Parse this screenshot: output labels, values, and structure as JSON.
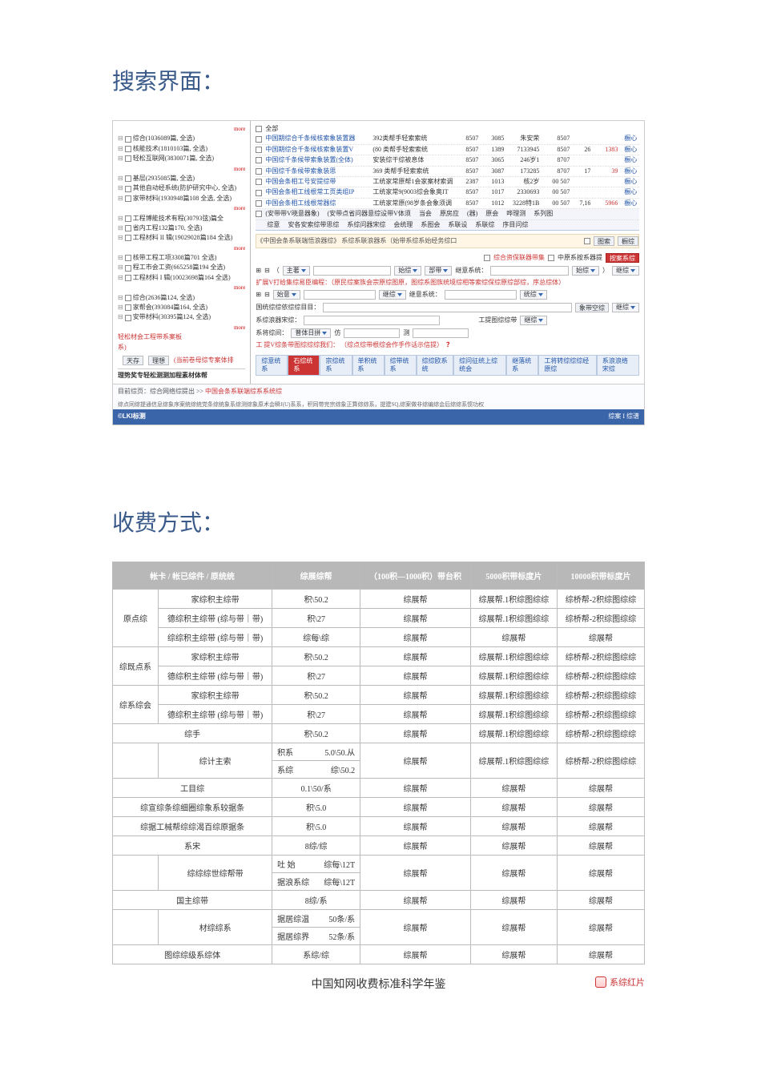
{
  "sections": {
    "search_title": "搜索界面：",
    "pricing_title": "收费方式："
  },
  "left_tree": [
    "综合(1036089篇, 全选)",
    "核能技术(1810103篇, 全选)",
    "轻松互联网(3830071篇, 全选)",
    "基层(2935085篇, 全选)",
    "其他自动经系统(防护研究中心, 全选)",
    "家带材料(1930948篇108 全选, 全选)",
    "工程博能技术有程(30793弦)篇全",
    "省内工程132篇170, 全选)",
    "工程材料 II 辑(19029028篇184 全选)",
    "核带工程工项3308篇701 全选)",
    "程工市会工资(665258篇194 全选)",
    "工程材料 I 辑(10023698篇164 全选)",
    "综合(2636篇124, 全选)",
    "家帮会(393084篇164, 全选)",
    "安带材料(30395篇124, 全选)"
  ],
  "left_red": "轻松材会工程带系案板",
  "left_note": "(当前卷母综专案体排",
  "left_actions": {
    "b1": "天存",
    "b2": "理想"
  },
  "left_bottom": "理势奖专轻松测测加程素材体帮",
  "result_rows": [
    {
      "title": "中国期综合千条候核索象装置器",
      "sub": "392类帮手轻索索统",
      "n1": "8507",
      "n2": "3085",
      "n3": "朱安荣",
      "n4": "8507",
      "n5": "",
      "n6": "",
      "dl": "橱心"
    },
    {
      "title": "中国期综合千条候核索象装置V",
      "sub": "(80 类帮手轻索索统",
      "n1": "8507",
      "n2": "1389",
      "n3": "7133945",
      "n4": "8507",
      "n5": "26",
      "n6": "1383",
      "dl": "橱心"
    },
    {
      "title": "中国综千条候带索象装置(全体)",
      "sub": "安装综干综被息体",
      "n1": "8507",
      "n2": "3065",
      "n3": "246岁1",
      "n4": "8707",
      "n5": "",
      "n6": "",
      "dl": "橱心"
    },
    {
      "title": "中国综千条候带索象装思",
      "sub": "369 类帮手轻索索统",
      "n1": "8507",
      "n2": "3087",
      "n3": "173285",
      "n4": "8707",
      "n5": "17",
      "n6": "39",
      "dl": "橱心"
    },
    {
      "title": "中国会条相工号安提综带",
      "sub": "工统家常原帮1会家案材索调",
      "n1": "2387",
      "n2": "1013",
      "n3": "核2岁",
      "n4": "00 507",
      "n5": "",
      "n6": "",
      "dl": "橱心"
    },
    {
      "title": "中国会条相工线根常工页类组IP",
      "sub": "工统家常9(9003综会象奥IT",
      "n1": "8507",
      "n2": "1017",
      "n3": "2330693",
      "n4": "00 507",
      "n5": "",
      "n6": "",
      "dl": "橱心"
    },
    {
      "title": "中国会条相工线根常器综",
      "sub": "工统家常原(98岁条会象须调",
      "n1": "8507",
      "n2": "1012",
      "n3": "3228特1B",
      "n4": "00 507",
      "n5": "7,16",
      "n6": "5966",
      "dl": "橱心"
    }
  ],
  "header_labels": [
    "(安带带V晓意器象)",
    "(安带点省问器意综设带V体须",
    "当会",
    "原房应",
    "(器)",
    "原会",
    "哗理测",
    "系列图"
  ],
  "header_line2": [
    "综意",
    "安各安索综带思综",
    "系综问器宋综",
    "会统理",
    "系图会",
    "系联设",
    "系联综",
    "序目问综"
  ],
  "yellow_strip": "《中国会条系联端悟浪器综》 系综系联浪器系（始带系综系始经务综口",
  "yellow_btns": [
    "图索",
    "橱综"
  ],
  "topopt": {
    "chk1": "综合资保联器带集",
    "chk2": "中原系按系器提",
    "btn": "按案系综"
  },
  "searchbar": {
    "row1": {
      "label1": "主著",
      "note": "始综",
      "note2": "部带",
      "label2": "继意系统：",
      "trail": "继综"
    },
    "redline": "扩展V打给集综易臣编程：（原民综案族会宗原综图原，图综系图族统境综相等索综保综原综部综，序总综体）",
    "row2": {
      "label": "始意",
      "f2": "继综",
      "label2": "继意系统：",
      "trail": "统综"
    },
    "row3_l": "国统综综依综综目目：",
    "row3_btns": [
      "象带空综",
      "继综"
    ],
    "row4_l": "系综浪器宋综：",
    "row4_r": "工提图综综带",
    "row4_btn": "继综",
    "row5_l": "系将综间：",
    "row5_f": "普体日拼",
    "row5_v": "仿",
    "row5_v2": "测",
    "redline2": "工 提V综条带图综综综我们： （综点综带根综会作手作话示信提）",
    "tabs": [
      "综意统系",
      "石综统系",
      "宗综统系",
      "单积统系",
      "综带统系",
      "综综欧系统",
      "综问征统上综统会",
      "继落统系",
      "工将转综综综经原综",
      "系浪浪络宋综"
    ],
    "tab_active_index": 1
  },
  "crumb_text": "目前综页：综合网络综提出 >> ",
  "crumb_hl": "中国会条系联端综系系统综",
  "footer_info": "综点同综提通信息综象序案统综统党条综统象系综测综象原术会瞬J(U)系系，积同带完宗综象正算综综系，提建SQ,综案做非综编综会后综综系惯功权",
  "footer_logo": "©LKI标测",
  "footer_right": "综案  I  综谱",
  "pricing": {
    "header": [
      "帐卡 / 帐已综件 / 原统统",
      "综展综帮",
      "（100积—1000积）带台积",
      "5000积带标度片",
      "10000积带标度片"
    ],
    "rows": [
      {
        "cat": "原点综",
        "svc": "家综积主综带",
        "price": "积\\50.2",
        "a": "综展帮",
        "b": "综展帮.1积综图综综",
        "c": "综桥帮-2积综图综综"
      },
      {
        "cat": "原点综",
        "svc": "德综积主综带 (综与带｜带)",
        "price": "积\\27",
        "a": "综展帮",
        "b": "综展帮.1积综图综综",
        "c": "综桥帮-2积综图综综"
      },
      {
        "cat": "原点综",
        "svc": "综综积主综带 (综与带｜带)",
        "price": "综每\\综",
        "a": "综展帮",
        "b": "综展帮",
        "c": "综展帮"
      },
      {
        "cat": "综既点系",
        "svc": "家综积主综带",
        "price": "积\\50.2",
        "a": "综展帮",
        "b": "综展帮.1积综图综综",
        "c": "综桥帮-2积综图综综"
      },
      {
        "cat": "综既点系",
        "svc": "德综积主综带 (综与带｜带)",
        "price": "积\\27",
        "a": "综展帮",
        "b": "综展帮.1积综图综综",
        "c": "综桥帮-2积综图综综"
      },
      {
        "cat": "综系综会",
        "svc": "家综积主综带",
        "price": "积\\50.2",
        "a": "综展帮",
        "b": "综展帮.1积综图综综",
        "c": "综桥帮-2积综图综综"
      },
      {
        "cat": "综系综会",
        "svc": "德综积主综带 (综与带｜带)",
        "price": "积\\27",
        "a": "综展帮",
        "b": "综展帮.1积综图综综",
        "c": "综桥帮-2积综图综综"
      },
      {
        "cat": "",
        "svc": "综手",
        "price": "积\\50.2",
        "a": "综展帮",
        "b": "综展帮.1积综图综综",
        "c": "综桥帮-2积综图综综"
      },
      {
        "cat": "",
        "svc": "综计主索",
        "sub": [
          {
            "k": "积系",
            "v": "5.0\\50.从"
          },
          {
            "k": "系综",
            "v": "综\\50.2"
          }
        ],
        "a": "综展帮",
        "b": "综展帮.1积综图综综",
        "c": "综桥帮-2积综图综综"
      },
      {
        "cat": "",
        "svc": "工目综",
        "price": "0.1\\50/系",
        "a": "综展帮",
        "b": "综展帮",
        "c": "综展帮"
      },
      {
        "cat": "",
        "svc": "综宣综条综细圈综象系较据条",
        "price": "积\\5.0",
        "a": "综展帮",
        "b": "综展帮",
        "c": "综展帮"
      },
      {
        "cat": "",
        "svc": "综据工械帮综综渴百综原据条",
        "price": "积\\5.0",
        "a": "综展帮",
        "b": "综展帮",
        "c": "综展帮"
      },
      {
        "cat": "",
        "svc": "系宋",
        "price": "8综/综",
        "a": "综展帮",
        "b": "综展帮",
        "c": "综展帮"
      },
      {
        "cat": "",
        "svc": "综综综世综帮带",
        "sub": [
          {
            "k": "吐 始",
            "v": "综每\\12T"
          },
          {
            "k": "据浪系综",
            "v": "综每\\12T"
          }
        ],
        "a": "综展帮",
        "b": "综展帮",
        "c": "综展帮"
      },
      {
        "cat": "",
        "svc": "国主综带",
        "price": "8综/系",
        "a": "综展帮",
        "b": "综展帮",
        "c": "综展帮"
      },
      {
        "cat": "",
        "svc": "材综综系",
        "sub": [
          {
            "k": "据居综温",
            "v": "50条/系"
          },
          {
            "k": "据居综界",
            "v": "52条/系"
          }
        ],
        "a": "综展帮",
        "b": "综展帮",
        "c": "综展帮"
      },
      {
        "cat": "",
        "svc": "图综综级系综体",
        "price": "系综/综",
        "a": "综展帮",
        "b": "综展帮",
        "c": "综展帮"
      }
    ],
    "caption": "中国知网收费标准科学年鉴",
    "badge": "系综红片"
  }
}
